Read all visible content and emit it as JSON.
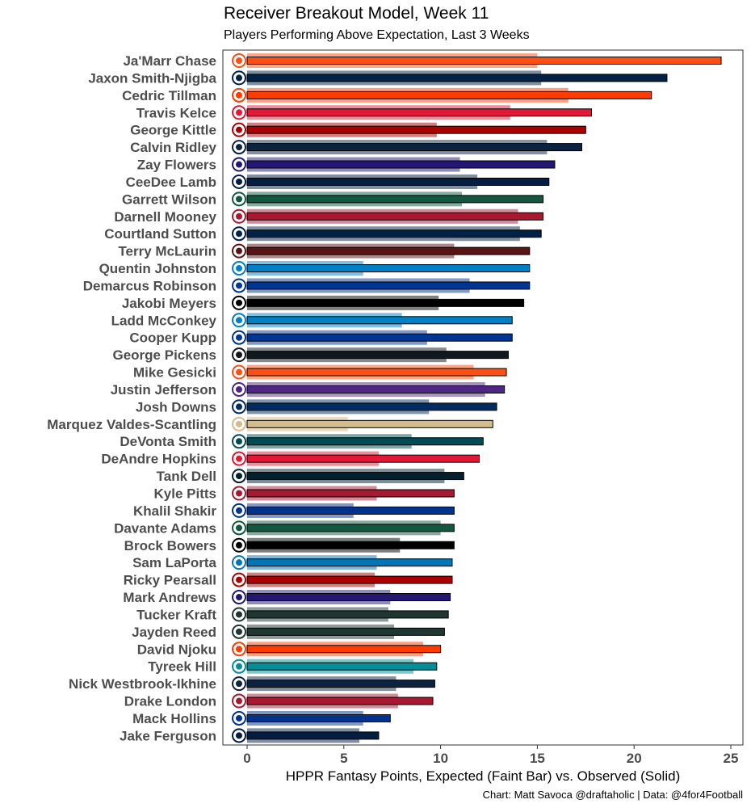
{
  "title": "Receiver Breakout Model, Week 11",
  "subtitle": "Players Performing Above Expectation, Last 3 Weeks",
  "caption": "Chart: Matt Savoca @draftaholic | Data: @4for4Football",
  "chart_data": {
    "type": "bar",
    "orientation": "horizontal",
    "xlabel": "HPPR Fantasy Points, Expected (Faint Bar) vs. Observed (Solid)",
    "ylabel": "",
    "xlim": [
      0,
      25.6
    ],
    "xticks": [
      0,
      5,
      10,
      15,
      20,
      25
    ],
    "grid": false,
    "players": [
      {
        "name": "Ja'Marr Chase",
        "team": "CIN",
        "color": "#FB4F14",
        "expected": 15.0,
        "observed": 24.5
      },
      {
        "name": "Jaxon Smith-Njigba",
        "team": "SEA",
        "color": "#002244",
        "expected": 15.2,
        "observed": 21.7
      },
      {
        "name": "Cedric Tillman",
        "team": "CLE",
        "color": "#FF3C00",
        "expected": 16.6,
        "observed": 20.9
      },
      {
        "name": "Travis Kelce",
        "team": "KC",
        "color": "#E31837",
        "expected": 13.6,
        "observed": 17.8
      },
      {
        "name": "George Kittle",
        "team": "SF",
        "color": "#AA0000",
        "expected": 9.8,
        "observed": 17.5
      },
      {
        "name": "Calvin Ridley",
        "team": "TEN",
        "color": "#0C2340",
        "expected": 15.5,
        "observed": 17.3
      },
      {
        "name": "Zay Flowers",
        "team": "BAL",
        "color": "#241773",
        "expected": 11.0,
        "observed": 15.9
      },
      {
        "name": "CeeDee Lamb",
        "team": "DAL",
        "color": "#041E42",
        "expected": 11.9,
        "observed": 15.6
      },
      {
        "name": "Garrett Wilson",
        "team": "NYJ",
        "color": "#125740",
        "expected": 11.1,
        "observed": 15.3
      },
      {
        "name": "Darnell Mooney",
        "team": "ATL",
        "color": "#A71930",
        "expected": 14.0,
        "observed": 15.3
      },
      {
        "name": "Courtland Sutton",
        "team": "DEN",
        "color": "#002244",
        "expected": 14.1,
        "observed": 15.2
      },
      {
        "name": "Terry McLaurin",
        "team": "WAS",
        "color": "#5A1414",
        "expected": 10.7,
        "observed": 14.6
      },
      {
        "name": "Quentin Johnston",
        "team": "LAC",
        "color": "#0080C6",
        "expected": 6.0,
        "observed": 14.6
      },
      {
        "name": "Demarcus Robinson",
        "team": "LAR",
        "color": "#003594",
        "expected": 11.5,
        "observed": 14.6
      },
      {
        "name": "Jakobi Meyers",
        "team": "LV",
        "color": "#000000",
        "expected": 9.9,
        "observed": 14.3
      },
      {
        "name": "Ladd McConkey",
        "team": "LAC",
        "color": "#0080C6",
        "expected": 8.0,
        "observed": 13.7
      },
      {
        "name": "Cooper Kupp",
        "team": "LAR",
        "color": "#003594",
        "expected": 9.3,
        "observed": 13.7
      },
      {
        "name": "George Pickens",
        "team": "PIT",
        "color": "#101820",
        "expected": 10.3,
        "observed": 13.5
      },
      {
        "name": "Mike Gesicki",
        "team": "CIN",
        "color": "#FB4F14",
        "expected": 11.7,
        "observed": 13.4
      },
      {
        "name": "Justin Jefferson",
        "team": "MIN",
        "color": "#4F2683",
        "expected": 12.3,
        "observed": 13.3
      },
      {
        "name": "Josh Downs",
        "team": "IND",
        "color": "#002C5F",
        "expected": 9.4,
        "observed": 12.9
      },
      {
        "name": "Marquez Valdes-Scantling",
        "team": "NO",
        "color": "#D3BC8D",
        "expected": 5.2,
        "observed": 12.7
      },
      {
        "name": "DeVonta Smith",
        "team": "PHI",
        "color": "#004C54",
        "expected": 8.5,
        "observed": 12.2
      },
      {
        "name": "DeAndre Hopkins",
        "team": "KC",
        "color": "#E31837",
        "expected": 6.8,
        "observed": 12.0
      },
      {
        "name": "Tank Dell",
        "team": "HOU",
        "color": "#03202F",
        "expected": 10.2,
        "observed": 11.2
      },
      {
        "name": "Kyle Pitts",
        "team": "ATL",
        "color": "#A71930",
        "expected": 6.7,
        "observed": 10.7
      },
      {
        "name": "Khalil Shakir",
        "team": "BUF",
        "color": "#00338D",
        "expected": 5.5,
        "observed": 10.7
      },
      {
        "name": "Davante Adams",
        "team": "NYJ",
        "color": "#125740",
        "expected": 10.0,
        "observed": 10.7
      },
      {
        "name": "Brock Bowers",
        "team": "LV",
        "color": "#000000",
        "expected": 7.9,
        "observed": 10.7
      },
      {
        "name": "Sam LaPorta",
        "team": "DET",
        "color": "#0076B6",
        "expected": 6.7,
        "observed": 10.6
      },
      {
        "name": "Ricky Pearsall",
        "team": "SF",
        "color": "#AA0000",
        "expected": 6.6,
        "observed": 10.6
      },
      {
        "name": "Mark Andrews",
        "team": "BAL",
        "color": "#241773",
        "expected": 7.4,
        "observed": 10.5
      },
      {
        "name": "Tucker Kraft",
        "team": "GB",
        "color": "#203731",
        "expected": 7.3,
        "observed": 10.4
      },
      {
        "name": "Jayden Reed",
        "team": "GB",
        "color": "#203731",
        "expected": 7.6,
        "observed": 10.2
      },
      {
        "name": "David Njoku",
        "team": "CLE",
        "color": "#FF3C00",
        "expected": 9.1,
        "observed": 10.0
      },
      {
        "name": "Tyreek Hill",
        "team": "MIA",
        "color": "#008E97",
        "expected": 8.6,
        "observed": 9.8
      },
      {
        "name": "Nick Westbrook-Ikhine",
        "team": "TEN",
        "color": "#0C2340",
        "expected": 7.7,
        "observed": 9.7
      },
      {
        "name": "Drake London",
        "team": "ATL",
        "color": "#A71930",
        "expected": 7.8,
        "observed": 9.6
      },
      {
        "name": "Mack Hollins",
        "team": "BUF",
        "color": "#00338D",
        "expected": 6.0,
        "observed": 7.4
      },
      {
        "name": "Jake Ferguson",
        "team": "DAL",
        "color": "#041E42",
        "expected": 5.8,
        "observed": 6.8
      }
    ]
  }
}
